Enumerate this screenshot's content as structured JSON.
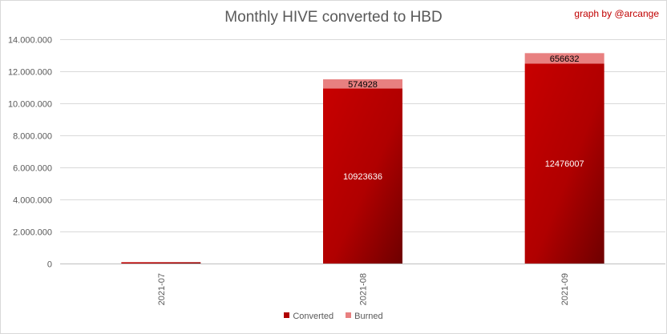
{
  "chart_data": {
    "type": "bar",
    "stacked": true,
    "title": "Monthly HIVE converted to HBD",
    "credit": "graph by @arcange",
    "categories": [
      "2021-07",
      "2021-08",
      "2021-09"
    ],
    "series": [
      {
        "name": "Converted",
        "color": "#b00000",
        "values": [
          80000,
          10923636,
          12476007
        ],
        "labels": [
          "",
          "10923636",
          "12476007"
        ]
      },
      {
        "name": "Burned",
        "color": "#e88080",
        "values": [
          0,
          574928,
          656632
        ],
        "labels": [
          "",
          "574928",
          "656632"
        ]
      }
    ],
    "ylim": [
      0,
      14000000
    ],
    "yticks": [
      "0",
      "2.000.000",
      "4.000.000",
      "6.000.000",
      "8.000.000",
      "10.000.000",
      "12.000.000",
      "14.000.000"
    ],
    "grid": true,
    "legend_position": "bottom"
  }
}
